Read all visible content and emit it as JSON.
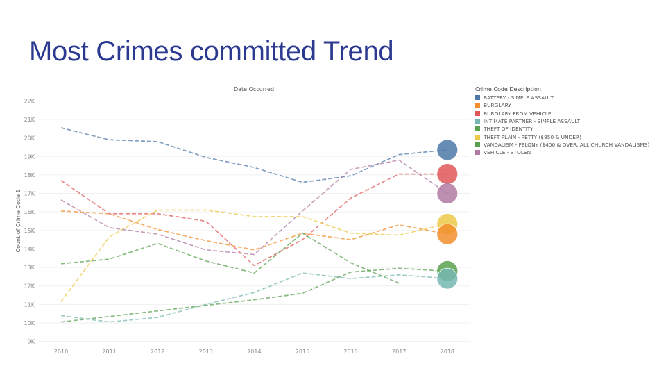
{
  "slide": {
    "title": "Most Crimes committed Trend"
  },
  "chart_data": {
    "type": "line",
    "title": "Date Occurred",
    "xlabel": "",
    "ylabel": "Count of Crime Code 1",
    "x": [
      2010,
      2011,
      2012,
      2013,
      2014,
      2015,
      2016,
      2017,
      2018
    ],
    "ylim": [
      8.8,
      22.2
    ],
    "yticks": [
      "22K",
      "21K",
      "20K",
      "19K",
      "18K",
      "17K",
      "16K",
      "15K",
      "14K",
      "13K",
      "12K",
      "11K",
      "10K",
      "9K"
    ],
    "ytick_values": [
      22,
      21,
      20,
      19,
      18,
      17,
      16,
      15,
      14,
      13,
      12,
      11,
      10,
      9
    ],
    "grid": true,
    "legend_title": "Crime Code Description",
    "legend_position": "right",
    "series": [
      {
        "name": "BATTERY - SIMPLE ASSAULT",
        "color": "#4e79a7",
        "values": [
          20.55,
          19.9,
          19.8,
          18.95,
          18.4,
          17.6,
          17.95,
          19.1,
          19.35
        ]
      },
      {
        "name": "BURGLARY",
        "color": "#f28e2b",
        "values": [
          16.05,
          15.9,
          15.05,
          14.45,
          13.95,
          14.85,
          14.5,
          15.3,
          14.8
        ]
      },
      {
        "name": "BURGLARY FROM VEHICLE",
        "color": "#e15759",
        "values": [
          17.7,
          15.9,
          15.9,
          15.5,
          13.1,
          14.5,
          16.75,
          18.05,
          18.05
        ]
      },
      {
        "name": "INTIMATE PARTNER - SIMPLE ASSAULT",
        "color": "#76b7b2",
        "values": [
          10.4,
          10.05,
          10.3,
          11.0,
          11.65,
          12.7,
          12.4,
          12.6,
          12.4
        ]
      },
      {
        "name": "THEFT OF IDENTITY",
        "color": "#59a14f",
        "values": [
          10.05,
          10.35,
          10.65,
          10.95,
          11.25,
          11.6,
          12.75,
          12.95,
          12.8
        ]
      },
      {
        "name": "THEFT PLAIN - PETTY ($950 & UNDER)",
        "color": "#edc948",
        "values": [
          11.15,
          14.65,
          16.1,
          16.1,
          15.75,
          15.75,
          14.85,
          14.75,
          15.35
        ]
      },
      {
        "name": "VANDALISM - FELONY ($400 & OVER, ALL CHURCH VANDALISMS)",
        "color": "#59a14f",
        "values": [
          13.2,
          13.45,
          14.3,
          13.35,
          12.7,
          14.85,
          13.25,
          12.15,
          null
        ]
      },
      {
        "name": "VEHICLE - STOLEN",
        "color": "#b07aa1",
        "values": [
          16.65,
          15.15,
          14.8,
          13.95,
          13.7,
          16.05,
          18.3,
          18.8,
          17.0
        ]
      }
    ],
    "endpoint_markers": [
      {
        "series": "BATTERY - SIMPLE ASSAULT",
        "value": 19.35,
        "color": "#4e79a7"
      },
      {
        "series": "BURGLARY FROM VEHICLE",
        "value": 18.05,
        "color": "#e15759"
      },
      {
        "series": "VEHICLE - STOLEN",
        "value": 17.0,
        "color": "#b07aa1"
      },
      {
        "series": "THEFT PLAIN - PETTY ($950 & UNDER)",
        "value": 15.35,
        "color": "#edc948"
      },
      {
        "series": "BURGLARY",
        "value": 14.8,
        "color": "#f28e2b"
      },
      {
        "series": "THEFT OF IDENTITY",
        "value": 12.8,
        "color": "#59a14f"
      },
      {
        "series": "INTIMATE PARTNER - SIMPLE ASSAULT",
        "value": 12.4,
        "color": "#76b7b2"
      }
    ]
  }
}
